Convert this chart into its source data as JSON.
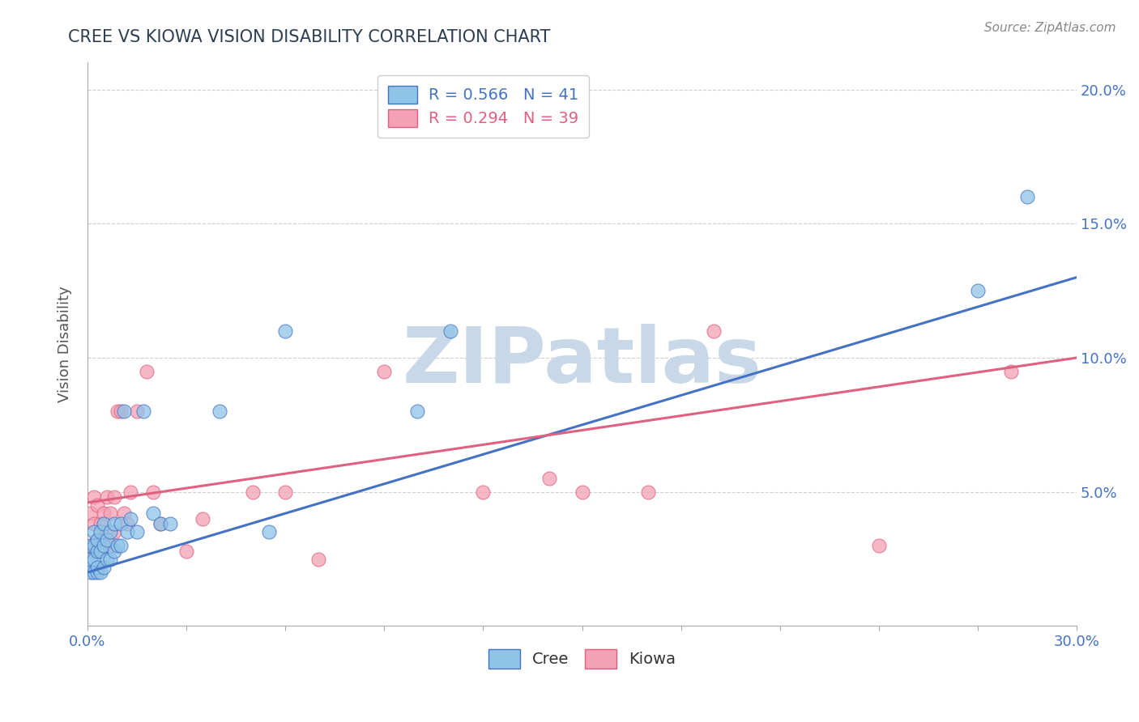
{
  "title": "CREE VS KIOWA VISION DISABILITY CORRELATION CHART",
  "source_text": "Source: ZipAtlas.com",
  "ylabel": "Vision Disability",
  "xlim": [
    0.0,
    0.3
  ],
  "ylim": [
    0.0,
    0.21
  ],
  "xtick_positions": [
    0.0,
    0.03,
    0.06,
    0.09,
    0.12,
    0.15,
    0.18,
    0.21,
    0.24,
    0.27,
    0.3
  ],
  "xtick_labels_sparse": {
    "0": "0.0%",
    "10": "30.0%"
  },
  "ytick_positions": [
    0.0,
    0.05,
    0.1,
    0.15,
    0.2
  ],
  "ytick_labels": [
    "",
    "5.0%",
    "10.0%",
    "15.0%",
    "20.0%"
  ],
  "cree_color": "#8ec4e8",
  "kiowa_color": "#f4a0b5",
  "cree_line_color": "#4472c4",
  "kiowa_line_color": "#e06080",
  "cree_R": 0.566,
  "cree_N": 41,
  "kiowa_R": 0.294,
  "kiowa_N": 39,
  "cree_scatter_x": [
    0.001,
    0.001,
    0.001,
    0.002,
    0.002,
    0.002,
    0.002,
    0.003,
    0.003,
    0.003,
    0.003,
    0.004,
    0.004,
    0.004,
    0.005,
    0.005,
    0.005,
    0.006,
    0.006,
    0.007,
    0.007,
    0.008,
    0.008,
    0.009,
    0.01,
    0.01,
    0.011,
    0.012,
    0.013,
    0.015,
    0.017,
    0.02,
    0.022,
    0.025,
    0.04,
    0.055,
    0.06,
    0.1,
    0.11,
    0.27,
    0.285
  ],
  "cree_scatter_y": [
    0.02,
    0.025,
    0.03,
    0.02,
    0.025,
    0.03,
    0.035,
    0.02,
    0.022,
    0.028,
    0.032,
    0.02,
    0.028,
    0.035,
    0.022,
    0.03,
    0.038,
    0.025,
    0.032,
    0.025,
    0.035,
    0.028,
    0.038,
    0.03,
    0.03,
    0.038,
    0.08,
    0.035,
    0.04,
    0.035,
    0.08,
    0.042,
    0.038,
    0.038,
    0.08,
    0.035,
    0.11,
    0.08,
    0.11,
    0.125,
    0.16
  ],
  "kiowa_scatter_x": [
    0.001,
    0.001,
    0.002,
    0.002,
    0.002,
    0.003,
    0.003,
    0.004,
    0.004,
    0.005,
    0.005,
    0.006,
    0.006,
    0.007,
    0.007,
    0.008,
    0.008,
    0.009,
    0.01,
    0.011,
    0.012,
    0.013,
    0.015,
    0.018,
    0.02,
    0.022,
    0.03,
    0.035,
    0.05,
    0.06,
    0.07,
    0.09,
    0.12,
    0.14,
    0.15,
    0.17,
    0.19,
    0.24,
    0.28
  ],
  "kiowa_scatter_y": [
    0.03,
    0.042,
    0.028,
    0.038,
    0.048,
    0.032,
    0.045,
    0.028,
    0.038,
    0.032,
    0.042,
    0.035,
    0.048,
    0.03,
    0.042,
    0.035,
    0.048,
    0.08,
    0.08,
    0.042,
    0.038,
    0.05,
    0.08,
    0.095,
    0.05,
    0.038,
    0.028,
    0.04,
    0.05,
    0.05,
    0.025,
    0.095,
    0.05,
    0.055,
    0.05,
    0.05,
    0.11,
    0.03,
    0.095
  ],
  "cree_line_x0": 0.0,
  "cree_line_y0": 0.02,
  "cree_line_x1": 0.3,
  "cree_line_y1": 0.13,
  "kiowa_line_x0": 0.0,
  "kiowa_line_y0": 0.046,
  "kiowa_line_x1": 0.3,
  "kiowa_line_y1": 0.1,
  "watermark": "ZIPatlas",
  "watermark_color": "#c8d8e8",
  "background_color": "#ffffff",
  "grid_color": "#d0d0d0",
  "title_color": "#2c3e50",
  "axis_label_color": "#555555",
  "tick_color": "#4472c4"
}
